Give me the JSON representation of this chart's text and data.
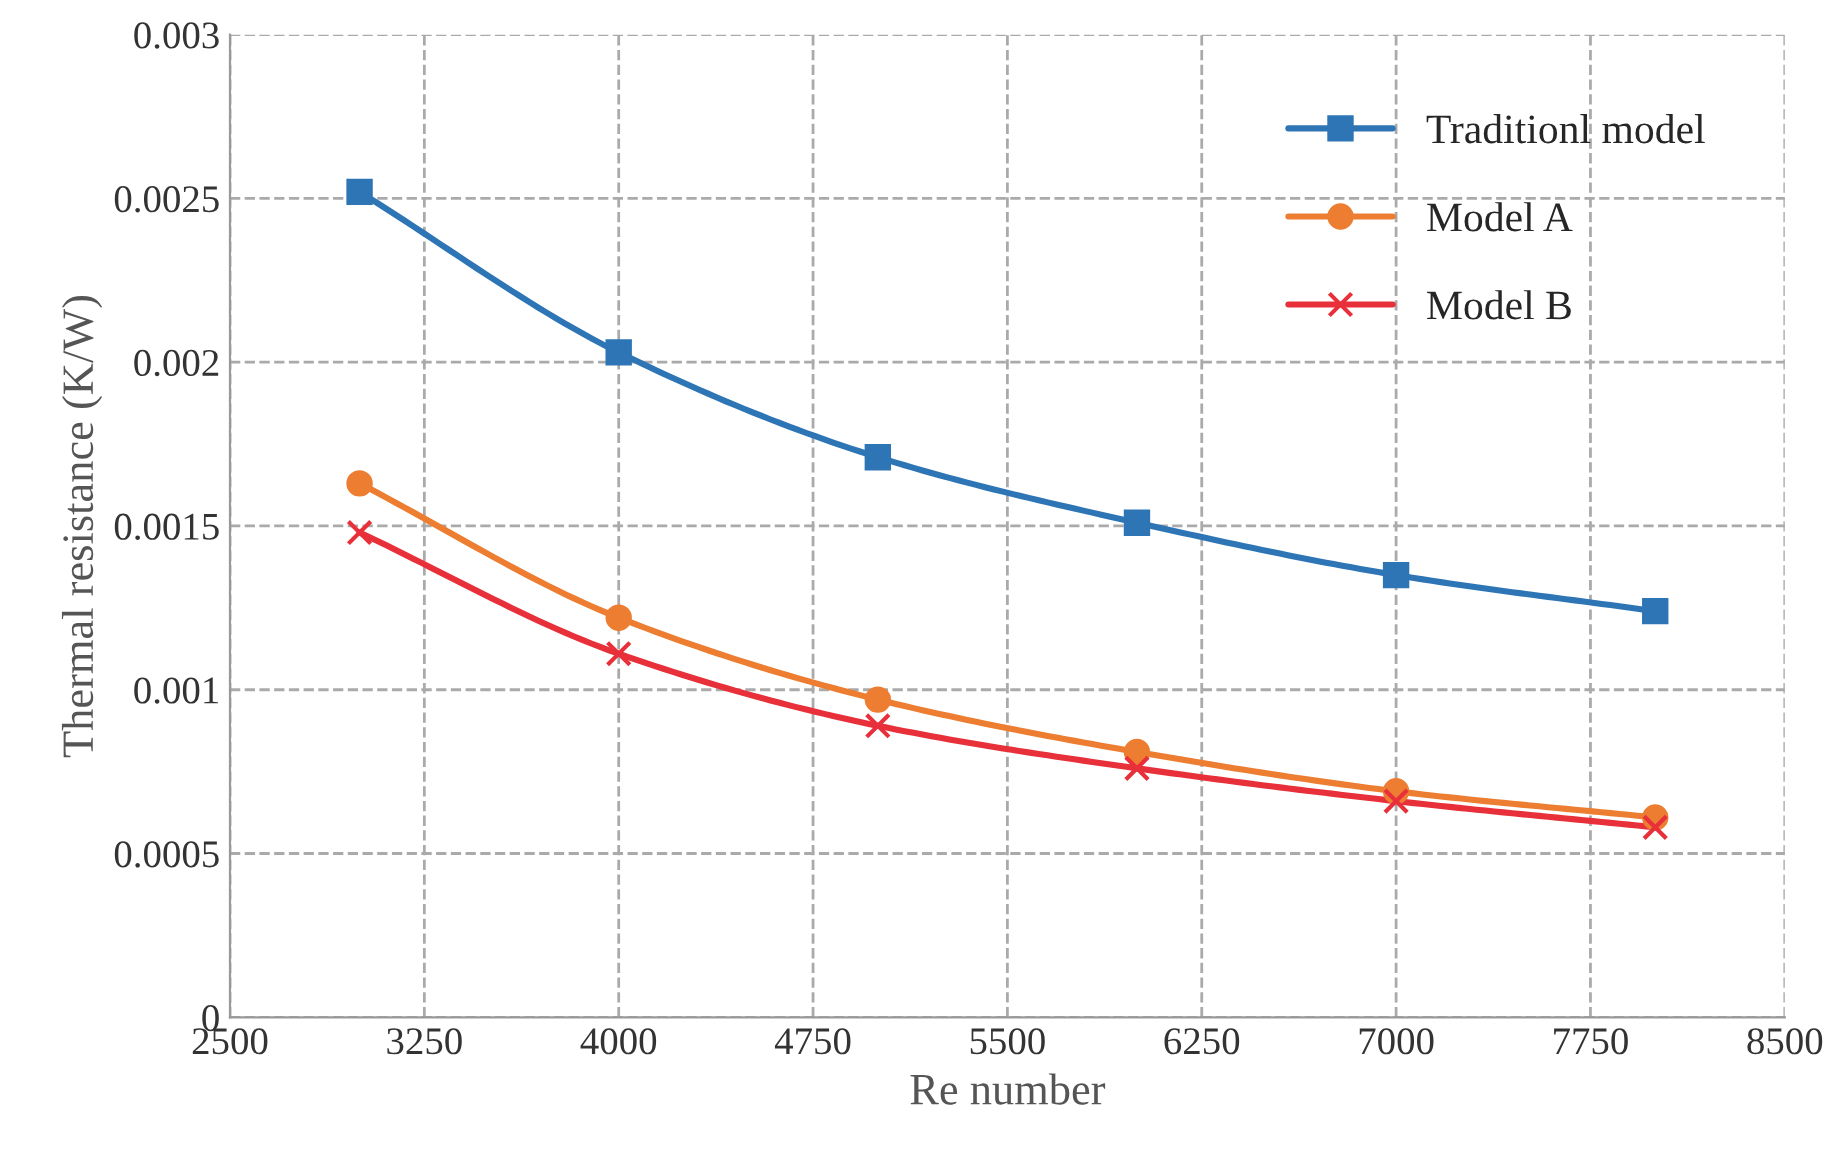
{
  "chart_data": {
    "type": "line",
    "xlabel": "Re number",
    "ylabel": "Thermal resistance (K/W)",
    "x": [
      3000,
      4000,
      5000,
      6000,
      7000,
      8000
    ],
    "series": [
      {
        "name": "Traditionl model",
        "color": "#2e75b6",
        "marker": "square",
        "values": [
          0.00252,
          0.00203,
          0.00171,
          0.00151,
          0.00135,
          0.00124
        ]
      },
      {
        "name": "Model A",
        "color": "#ed7d31",
        "marker": "circle",
        "values": [
          0.00163,
          0.00122,
          0.00097,
          0.00081,
          0.00069,
          0.00061
        ]
      },
      {
        "name": "Model B",
        "color": "#e8303a",
        "marker": "cross",
        "values": [
          0.00148,
          0.00111,
          0.00089,
          0.00076,
          0.00066,
          0.00058
        ]
      }
    ],
    "xlim": [
      2500,
      8500
    ],
    "xticks": [
      2500,
      3250,
      4000,
      4750,
      5500,
      6250,
      7000,
      7750,
      8500
    ],
    "ylim": [
      0,
      0.003
    ],
    "yticks": [
      0,
      0.0005,
      0.001,
      0.0015,
      0.002,
      0.0025,
      0.003
    ],
    "grid": true,
    "legend": "top right",
    "line_style": "solid"
  }
}
